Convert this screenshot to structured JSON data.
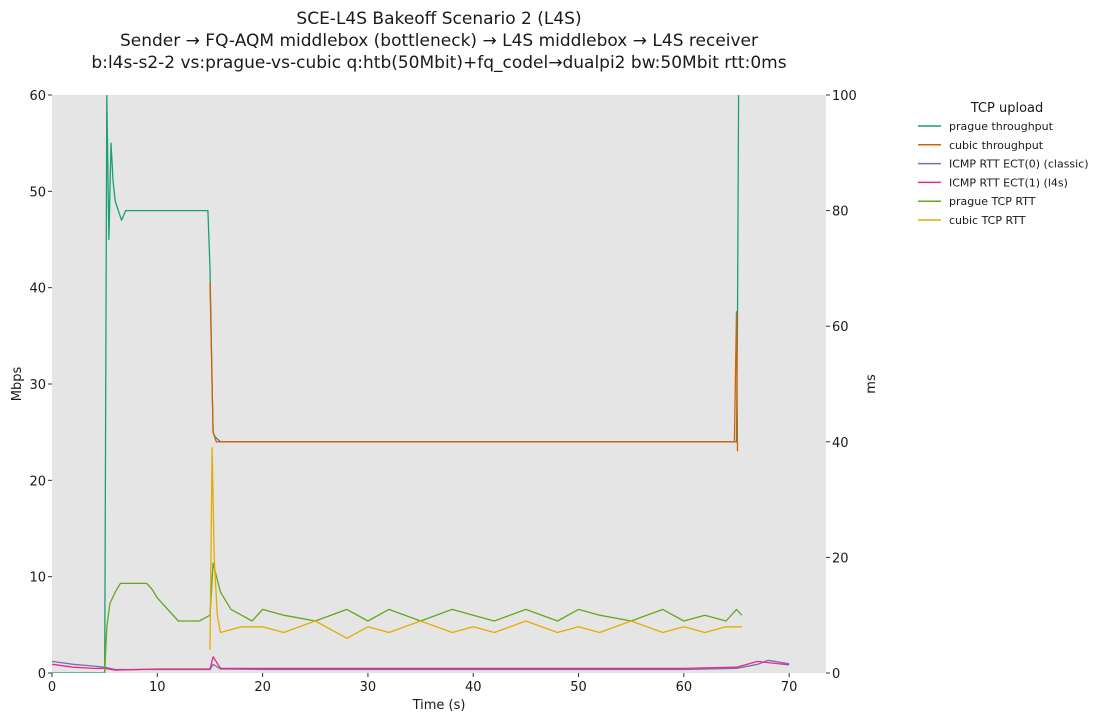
{
  "chart_data": {
    "type": "line",
    "title": [
      "SCE-L4S Bakeoff Scenario 2 (L4S)",
      "Sender → FQ-AQM middlebox (bottleneck) → L4S middlebox → L4S receiver",
      "b:l4s-s2-2 vs:prague-vs-cubic q:htb(50Mbit)+fq_codel→dualpi2 bw:50Mbit rtt:0ms"
    ],
    "xlabel": "Time (s)",
    "ylabel": "Mbps",
    "y2label": "ms",
    "xlim": [
      0,
      73.5
    ],
    "ylim": [
      0,
      60
    ],
    "y2lim": [
      0,
      100
    ],
    "xticks": [
      0,
      10,
      20,
      30,
      40,
      50,
      60,
      70
    ],
    "yticks": [
      0,
      10,
      20,
      30,
      40,
      50,
      60
    ],
    "y2ticks": [
      0,
      20,
      40,
      60,
      80,
      100
    ],
    "legend_title": "TCP upload",
    "legend_position": "outside-right",
    "plot_background": "#e5e5e5",
    "series": [
      {
        "name": "prague throughput",
        "axis": "left",
        "color": "#1b9e77",
        "x": [
          0,
          5.0,
          5.2,
          5.4,
          5.6,
          5.8,
          6.0,
          6.3,
          6.6,
          7,
          8,
          9,
          10,
          11,
          12,
          13,
          14,
          14.8,
          15.0,
          15.2,
          15.3,
          15.5,
          16,
          20,
          25,
          30,
          35,
          40,
          45,
          50,
          55,
          60,
          64,
          65.0,
          65.1,
          65.2
        ],
        "y": [
          0,
          0,
          60,
          45,
          55,
          51,
          49,
          48,
          47,
          48,
          48,
          48,
          48,
          48,
          48,
          48,
          48,
          48,
          42,
          30,
          25,
          24.5,
          24,
          24,
          24,
          24,
          24,
          24,
          24,
          24,
          24,
          24,
          24,
          24,
          37,
          60
        ]
      },
      {
        "name": "cubic throughput",
        "axis": "left",
        "color": "#d95f02",
        "x": [
          15.0,
          15.2,
          15.3,
          15.6,
          16,
          20,
          25,
          30,
          35,
          40,
          45,
          50,
          55,
          60,
          64,
          64.8,
          65.0,
          65.1
        ],
        "y": [
          40.5,
          30,
          25,
          24,
          24,
          24,
          24,
          24,
          24,
          24,
          24,
          24,
          24,
          24,
          24,
          24,
          37.5,
          23
        ]
      },
      {
        "name": "ICMP RTT ECT(0) (classic)",
        "axis": "right",
        "color": "#7570b3",
        "x": [
          0,
          2,
          4,
          5,
          6,
          10,
          15,
          15.3,
          16,
          20,
          30,
          40,
          50,
          60,
          65,
          67,
          68,
          70
        ],
        "y": [
          2.0,
          1.5,
          1.2,
          1.0,
          0.6,
          0.6,
          0.6,
          1.5,
          0.7,
          0.6,
          0.6,
          0.6,
          0.6,
          0.6,
          0.8,
          1.5,
          2.2,
          1.6
        ]
      },
      {
        "name": "ICMP RTT ECT(1) (l4s)",
        "axis": "right",
        "color": "#e7298a",
        "x": [
          0,
          2,
          4,
          5,
          6,
          10,
          15,
          15.3,
          16,
          20,
          30,
          40,
          50,
          60,
          65,
          67,
          68,
          70
        ],
        "y": [
          1.5,
          1.0,
          0.8,
          0.8,
          0.5,
          0.7,
          0.7,
          2.8,
          0.8,
          0.8,
          0.8,
          0.8,
          0.8,
          0.8,
          1.0,
          2.0,
          1.8,
          1.4
        ]
      },
      {
        "name": "prague TCP RTT",
        "axis": "right",
        "color": "#66a61e",
        "x": [
          5.0,
          5.2,
          5.5,
          6,
          6.5,
          7,
          8,
          9,
          9.5,
          10,
          11,
          12,
          13,
          14,
          15,
          15.3,
          16,
          17,
          18,
          19,
          20,
          22,
          25,
          28,
          30,
          32,
          35,
          38,
          40,
          42,
          45,
          48,
          50,
          52,
          55,
          58,
          60,
          62,
          64,
          65,
          65.5
        ],
        "y": [
          0,
          8,
          12,
          14,
          15.5,
          15.5,
          15.5,
          15.5,
          14.5,
          13,
          11,
          9,
          9,
          9,
          10,
          19,
          14,
          11,
          10,
          9,
          11,
          10,
          9,
          11,
          9,
          11,
          9,
          11,
          10,
          9,
          11,
          9,
          11,
          10,
          9,
          11,
          9,
          10,
          9,
          11,
          10
        ]
      },
      {
        "name": "cubic TCP RTT",
        "axis": "right",
        "color": "#e6ab02",
        "x": [
          15.0,
          15.2,
          15.4,
          15.7,
          16,
          18,
          20,
          22,
          25,
          28,
          30,
          32,
          35,
          38,
          40,
          42,
          45,
          48,
          50,
          52,
          55,
          58,
          60,
          62,
          64,
          65,
          65.5
        ],
        "y": [
          4,
          39,
          20,
          10,
          7,
          8,
          8,
          7,
          9,
          6,
          8,
          7,
          9,
          7,
          8,
          7,
          9,
          7,
          8,
          7,
          9,
          7,
          8,
          7,
          8,
          8,
          8
        ]
      }
    ]
  }
}
